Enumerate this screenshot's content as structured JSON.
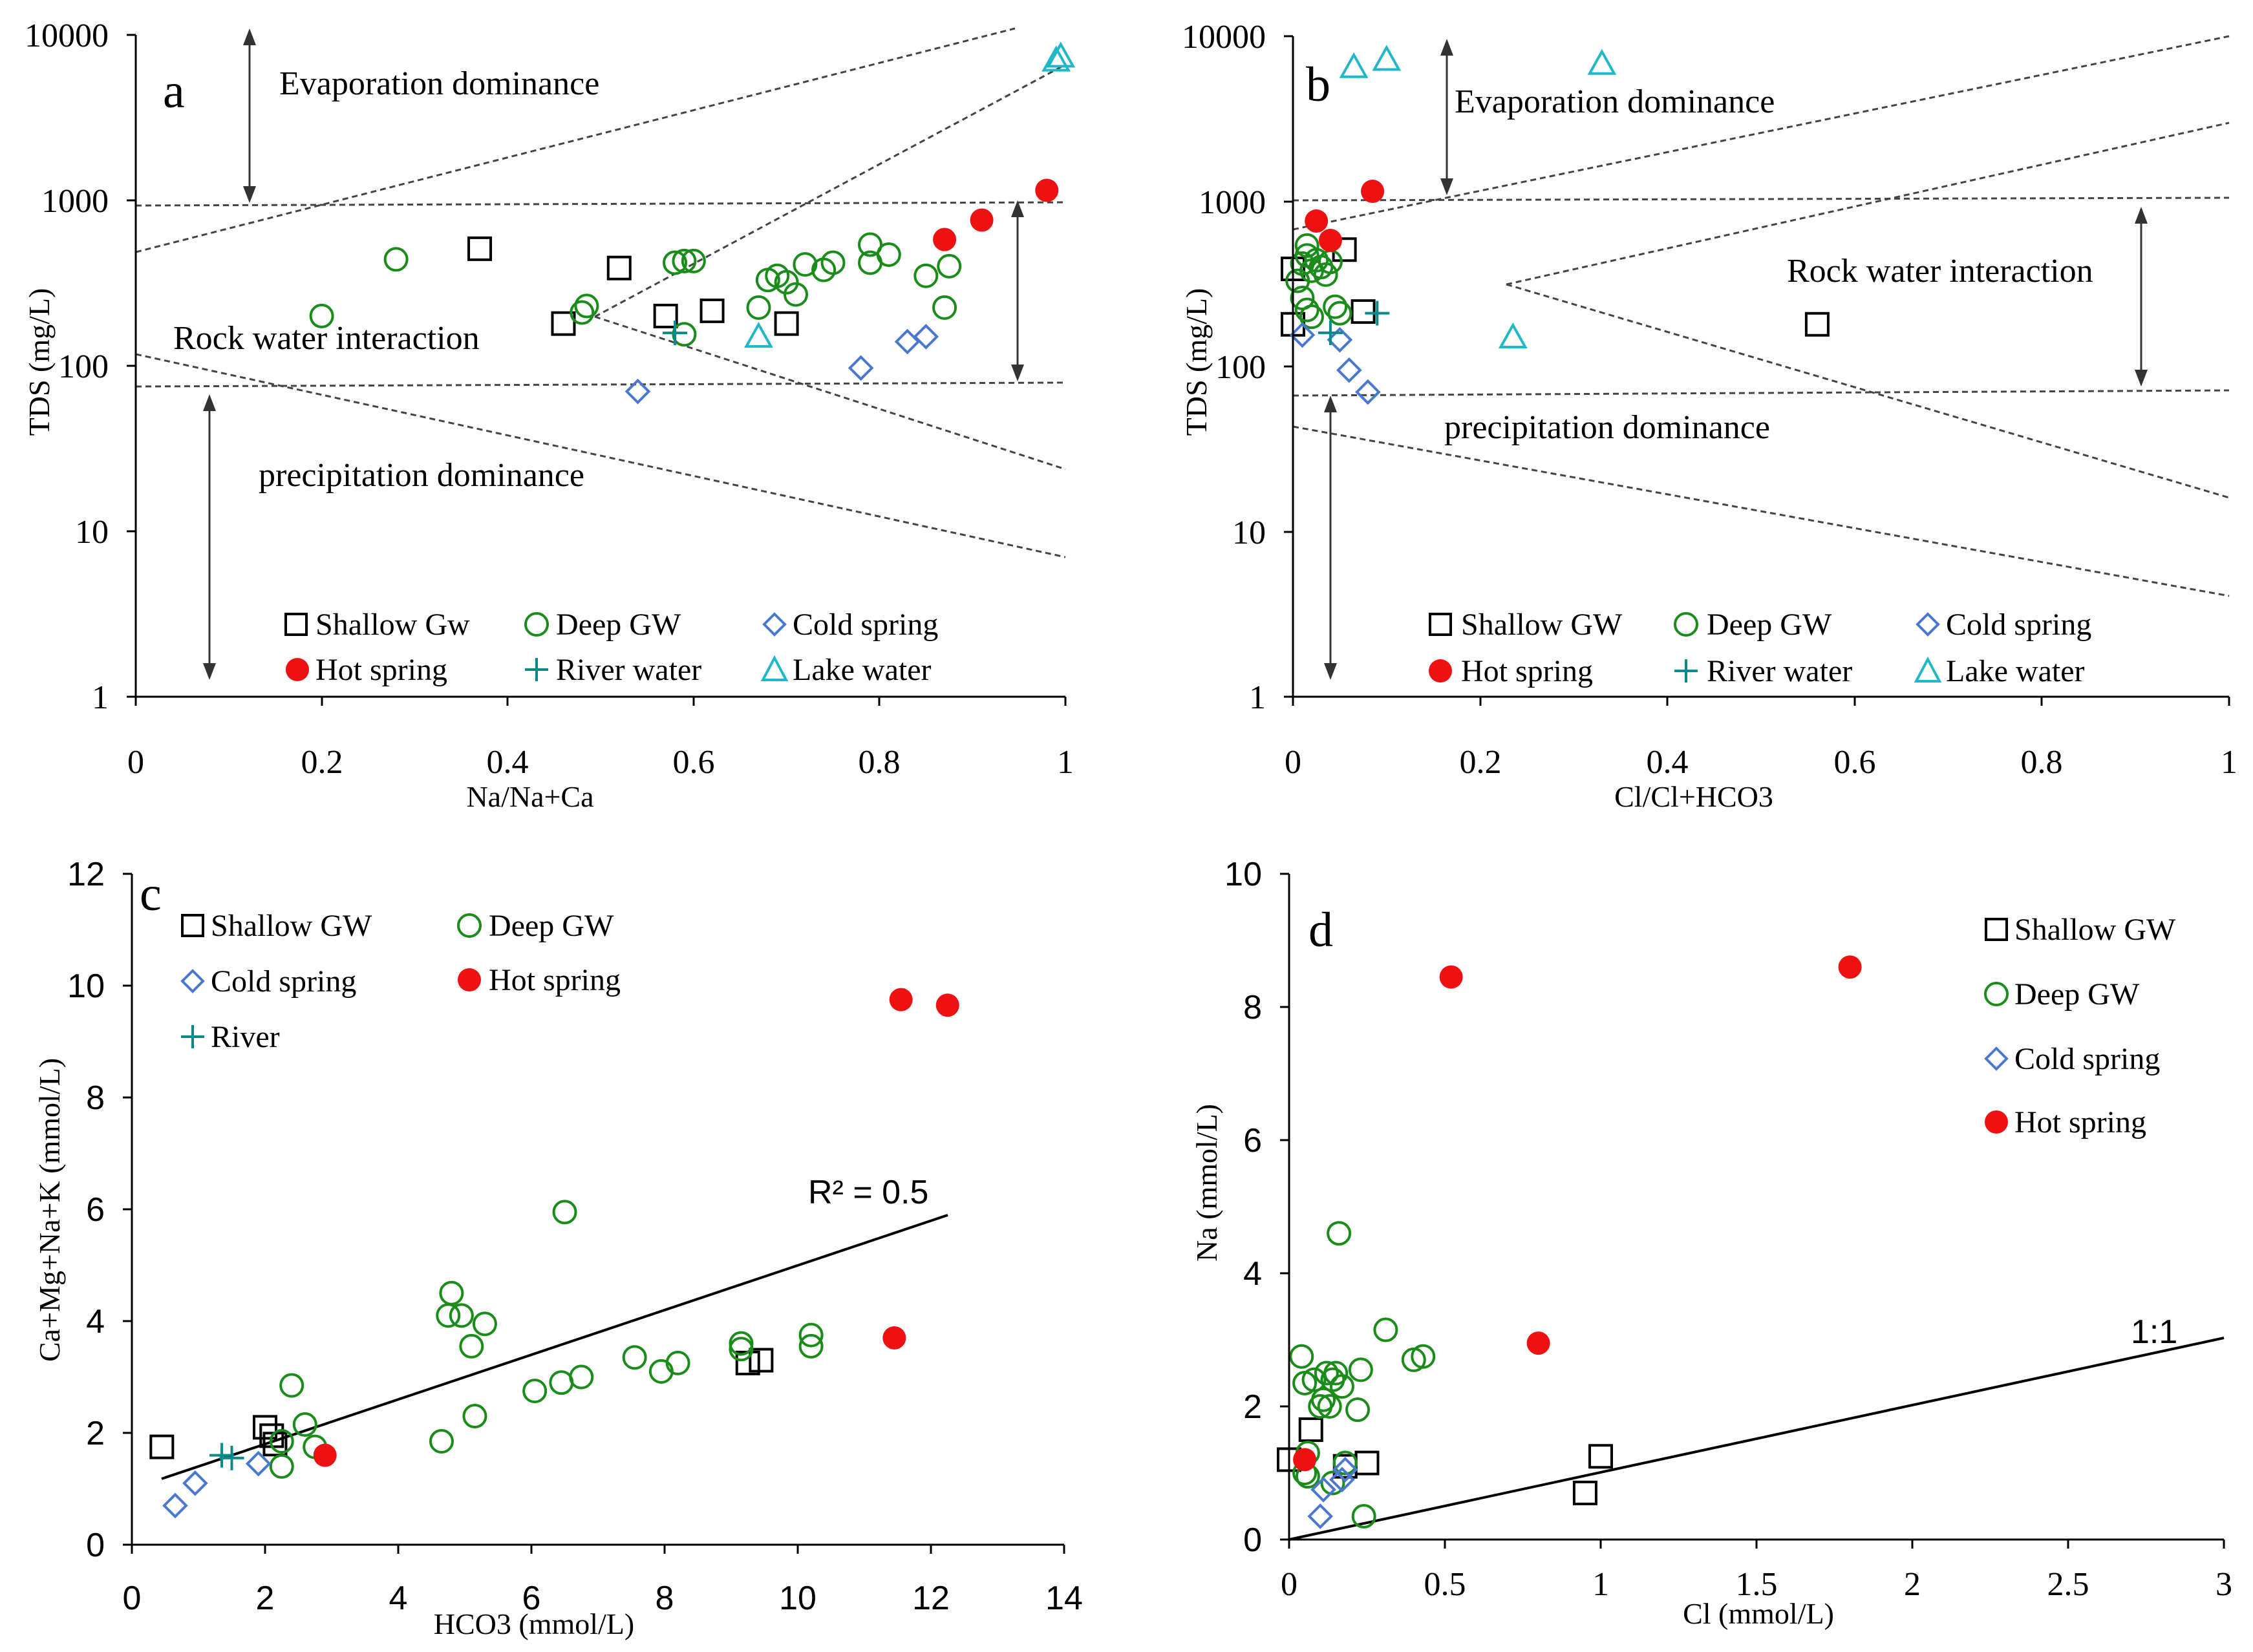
{
  "legend_names": {
    "shallow_a": "Shallow Gw",
    "shallow": "Shallow GW",
    "deep": "Deep GW",
    "cold": "Cold spring",
    "hot": "Hot spring",
    "river_water": "River water",
    "lake": "Lake water",
    "river": "River"
  },
  "colors": {
    "shallow": "#000000",
    "deep": "#1a8c1a",
    "cold": "#4a78d0",
    "hot": "#ee1111",
    "river": "#0a8a8a",
    "lake": "#20b8c8"
  },
  "chart_data": [
    {
      "id": "a",
      "type": "scatter",
      "panel_label": "a",
      "xlabel": "Na/Na+Ca",
      "ylabel": "TDS (mg/L)",
      "xlim": [
        0,
        1
      ],
      "ylim": [
        1,
        10000
      ],
      "yscale": "log",
      "xticks": [
        0,
        0.2,
        0.4,
        0.6,
        0.8,
        1
      ],
      "xtick_labels": [
        "0",
        "0.2",
        "0.4",
        "0.6",
        "0.8",
        "1"
      ],
      "yticks": [
        1,
        10,
        100,
        1000,
        10000
      ],
      "ytick_labels": [
        "1",
        "10",
        "100",
        "1000",
        "10000"
      ],
      "annotations": [
        "Evaporation dominance",
        "Rock water interaction",
        "precipitation dominance"
      ],
      "legend": [
        "Shallow Gw",
        "Deep GW",
        "Cold spring",
        "Hot spring",
        "River water",
        "Lake water"
      ],
      "series": [
        {
          "name": "Shallow Gw",
          "key": "shallow",
          "marker": "square",
          "points": [
            [
              0.37,
              510
            ],
            [
              0.46,
              180
            ],
            [
              0.52,
              390
            ],
            [
              0.57,
              200
            ],
            [
              0.62,
              215
            ],
            [
              0.7,
              180
            ]
          ]
        },
        {
          "name": "Deep GW",
          "key": "deep",
          "marker": "circle",
          "points": [
            [
              0.2,
              200
            ],
            [
              0.28,
              440
            ],
            [
              0.48,
              210
            ],
            [
              0.485,
              230
            ],
            [
              0.58,
              420
            ],
            [
              0.59,
              430
            ],
            [
              0.6,
              430
            ],
            [
              0.59,
              155
            ],
            [
              0.67,
              225
            ],
            [
              0.68,
              330
            ],
            [
              0.69,
              350
            ],
            [
              0.7,
              320
            ],
            [
              0.71,
              270
            ],
            [
              0.72,
              410
            ],
            [
              0.74,
              380
            ],
            [
              0.75,
              420
            ],
            [
              0.79,
              420
            ],
            [
              0.79,
              540
            ],
            [
              0.81,
              470
            ],
            [
              0.85,
              350
            ],
            [
              0.87,
              225
            ],
            [
              0.875,
              400
            ]
          ]
        },
        {
          "name": "Cold spring",
          "key": "cold",
          "marker": "diamond",
          "points": [
            [
              0.54,
              70
            ],
            [
              0.78,
              97
            ],
            [
              0.83,
              140
            ],
            [
              0.85,
              150
            ]
          ]
        },
        {
          "name": "Hot spring",
          "key": "hot",
          "marker": "filled-circle",
          "points": [
            [
              0.87,
              580
            ],
            [
              0.91,
              760
            ],
            [
              0.98,
              1150
            ]
          ]
        },
        {
          "name": "River water",
          "key": "river",
          "marker": "plus",
          "points": [
            [
              0.58,
              158
            ]
          ]
        },
        {
          "name": "Lake water",
          "key": "lake",
          "marker": "triangle",
          "points": [
            [
              0.67,
              150
            ],
            [
              0.99,
              7000
            ],
            [
              0.995,
              7400
            ]
          ]
        }
      ]
    },
    {
      "id": "b",
      "type": "scatter",
      "panel_label": "b",
      "xlabel": "Cl/Cl+HCO3",
      "ylabel": "TDS (mg/L)",
      "xlim": [
        0,
        1
      ],
      "ylim": [
        1,
        10000
      ],
      "yscale": "log",
      "xticks": [
        0,
        0.2,
        0.4,
        0.6,
        0.8,
        1
      ],
      "xtick_labels": [
        "0",
        "0.2",
        "0.4",
        "0.6",
        "0.8",
        "1"
      ],
      "yticks": [
        1,
        10,
        100,
        1000,
        10000
      ],
      "ytick_labels": [
        "1",
        "10",
        "100",
        "1000",
        "10000"
      ],
      "annotations": [
        "Evaporation dominance",
        "Rock water interaction",
        "precipitation dominance"
      ],
      "legend": [
        "Shallow GW",
        "Deep GW",
        "Cold spring",
        "Hot spring",
        "River water",
        "Lake water"
      ],
      "series": [
        {
          "name": "Shallow GW",
          "key": "shallow",
          "marker": "square",
          "points": [
            [
              0.0,
              390
            ],
            [
              0.0,
              180
            ],
            [
              0.055,
              510
            ],
            [
              0.075,
              215
            ],
            [
              0.56,
              180
            ]
          ]
        },
        {
          "name": "Deep GW",
          "key": "deep",
          "marker": "circle",
          "points": [
            [
              0.005,
              330
            ],
            [
              0.01,
              420
            ],
            [
              0.015,
              470
            ],
            [
              0.02,
              380
            ],
            [
              0.025,
              440
            ],
            [
              0.03,
              400
            ],
            [
              0.035,
              360
            ],
            [
              0.04,
              430
            ],
            [
              0.01,
              260
            ],
            [
              0.015,
              220
            ],
            [
              0.02,
              200
            ],
            [
              0.045,
              230
            ],
            [
              0.05,
              210
            ],
            [
              0.015,
              540
            ]
          ]
        },
        {
          "name": "Cold spring",
          "key": "cold",
          "marker": "diamond",
          "points": [
            [
              0.01,
              155
            ],
            [
              0.05,
              145
            ],
            [
              0.06,
              95
            ],
            [
              0.08,
              70
            ]
          ]
        },
        {
          "name": "Hot spring",
          "key": "hot",
          "marker": "filled-circle",
          "points": [
            [
              0.025,
              760
            ],
            [
              0.04,
              580
            ],
            [
              0.085,
              1150
            ]
          ]
        },
        {
          "name": "River water",
          "key": "river",
          "marker": "plus",
          "points": [
            [
              0.04,
              160
            ],
            [
              0.09,
              210
            ]
          ]
        },
        {
          "name": "Lake water",
          "key": "lake",
          "marker": "triangle",
          "points": [
            [
              0.065,
              6500
            ],
            [
              0.1,
              7200
            ],
            [
              0.235,
              150
            ],
            [
              0.33,
              6800
            ]
          ]
        }
      ]
    },
    {
      "id": "c",
      "type": "scatter",
      "panel_label": "c",
      "xlabel": "HCO3 (mmol/L)",
      "ylabel": "Ca+Mg+Na+K (mmol/L)",
      "xlim": [
        0,
        14
      ],
      "ylim": [
        0,
        12
      ],
      "yscale": "linear",
      "xticks": [
        0,
        2,
        4,
        6,
        8,
        10,
        12,
        14
      ],
      "xtick_labels": [
        "0",
        "2",
        "4",
        "6",
        "8",
        "10",
        "12",
        "14"
      ],
      "yticks": [
        0,
        2,
        4,
        6,
        8,
        10,
        12
      ],
      "ytick_labels": [
        "0",
        "2",
        "4",
        "6",
        "8",
        "10",
        "12"
      ],
      "fit_label": "R² = 0.5",
      "fit_line": [
        [
          0.5,
          1.1
        ],
        [
          12.2,
          5.85
        ]
      ],
      "legend": [
        "Shallow GW",
        "Deep GW",
        "Cold spring",
        "Hot spring",
        "River"
      ],
      "series": [
        {
          "name": "Shallow GW",
          "key": "shallow",
          "marker": "square",
          "points": [
            [
              0.45,
              1.75
            ],
            [
              2.0,
              2.1
            ],
            [
              2.1,
              1.95
            ],
            [
              2.15,
              1.8
            ],
            [
              9.25,
              3.25
            ],
            [
              9.45,
              3.3
            ]
          ]
        },
        {
          "name": "Deep GW",
          "key": "deep",
          "marker": "circle",
          "points": [
            [
              2.25,
              1.85
            ],
            [
              2.25,
              1.4
            ],
            [
              2.4,
              2.85
            ],
            [
              2.6,
              2.15
            ],
            [
              2.75,
              1.75
            ],
            [
              4.65,
              1.85
            ],
            [
              4.75,
              4.1
            ],
            [
              4.8,
              4.5
            ],
            [
              4.95,
              4.1
            ],
            [
              5.1,
              3.55
            ],
            [
              5.15,
              2.3
            ],
            [
              5.3,
              3.95
            ],
            [
              6.05,
              2.75
            ],
            [
              6.45,
              2.9
            ],
            [
              6.5,
              5.95
            ],
            [
              6.75,
              3.0
            ],
            [
              7.55,
              3.35
            ],
            [
              7.95,
              3.1
            ],
            [
              8.2,
              3.25
            ],
            [
              9.15,
              3.5
            ],
            [
              9.15,
              3.6
            ],
            [
              10.2,
              3.55
            ],
            [
              10.2,
              3.75
            ]
          ]
        },
        {
          "name": "Cold spring",
          "key": "cold",
          "marker": "diamond",
          "points": [
            [
              0.65,
              0.7
            ],
            [
              0.95,
              1.1
            ],
            [
              1.9,
              1.45
            ]
          ]
        },
        {
          "name": "Hot spring",
          "key": "hot",
          "marker": "filled-circle",
          "points": [
            [
              2.9,
              1.6
            ],
            [
              11.45,
              3.7
            ],
            [
              11.55,
              9.75
            ],
            [
              12.25,
              9.65
            ]
          ]
        },
        {
          "name": "River",
          "key": "river",
          "marker": "plus",
          "points": [
            [
              1.35,
              1.6
            ],
            [
              1.5,
              1.55
            ]
          ]
        }
      ]
    },
    {
      "id": "d",
      "type": "scatter",
      "panel_label": "d",
      "xlabel": "Cl (mmol/L)",
      "ylabel": "Na (mmol/L)",
      "xlim": [
        0,
        3
      ],
      "ylim": [
        0,
        10
      ],
      "yscale": "linear",
      "xticks": [
        0,
        0.5,
        1,
        1.5,
        2,
        2.5,
        3
      ],
      "xtick_labels": [
        "0",
        "0.5",
        "1",
        "1.5",
        "2",
        "2.5",
        "3"
      ],
      "yticks": [
        0,
        2,
        4,
        6,
        8,
        10
      ],
      "ytick_labels": [
        "0",
        "2",
        "4",
        "6",
        "8",
        "10"
      ],
      "fit_label": "1:1",
      "fit_line": [
        [
          0,
          0
        ],
        [
          3,
          3
        ]
      ],
      "legend": [
        "Shallow GW",
        "Deep GW",
        "Cold spring",
        "Hot spring"
      ],
      "series": [
        {
          "name": "Shallow GW",
          "key": "shallow",
          "marker": "square",
          "points": [
            [
              0.0,
              1.2
            ],
            [
              0.07,
              1.65
            ],
            [
              0.18,
              1.1
            ],
            [
              0.25,
              1.15
            ],
            [
              0.95,
              0.7
            ],
            [
              1.0,
              1.25
            ]
          ]
        },
        {
          "name": "Deep GW",
          "key": "deep",
          "marker": "circle",
          "points": [
            [
              0.04,
              2.75
            ],
            [
              0.05,
              2.35
            ],
            [
              0.06,
              1.3
            ],
            [
              0.05,
              1.0
            ],
            [
              0.06,
              0.95
            ],
            [
              0.08,
              2.4
            ],
            [
              0.1,
              2.0
            ],
            [
              0.11,
              2.1
            ],
            [
              0.12,
              2.5
            ],
            [
              0.13,
              2.0
            ],
            [
              0.14,
              2.4
            ],
            [
              0.15,
              2.5
            ],
            [
              0.16,
              4.6
            ],
            [
              0.17,
              2.3
            ],
            [
              0.18,
              1.15
            ],
            [
              0.22,
              1.95
            ],
            [
              0.23,
              2.55
            ],
            [
              0.24,
              0.35
            ],
            [
              0.31,
              3.15
            ],
            [
              0.4,
              2.7
            ],
            [
              0.43,
              2.75
            ],
            [
              0.14,
              0.85
            ]
          ]
        },
        {
          "name": "Cold spring",
          "key": "cold",
          "marker": "diamond",
          "points": [
            [
              0.1,
              0.35
            ],
            [
              0.11,
              0.75
            ],
            [
              0.17,
              0.9
            ],
            [
              0.18,
              1.05
            ]
          ]
        },
        {
          "name": "Hot spring",
          "key": "hot",
          "marker": "filled-circle",
          "points": [
            [
              0.05,
              1.2
            ],
            [
              0.52,
              8.45
            ],
            [
              0.8,
              2.95
            ],
            [
              1.8,
              8.6
            ]
          ]
        }
      ]
    }
  ]
}
